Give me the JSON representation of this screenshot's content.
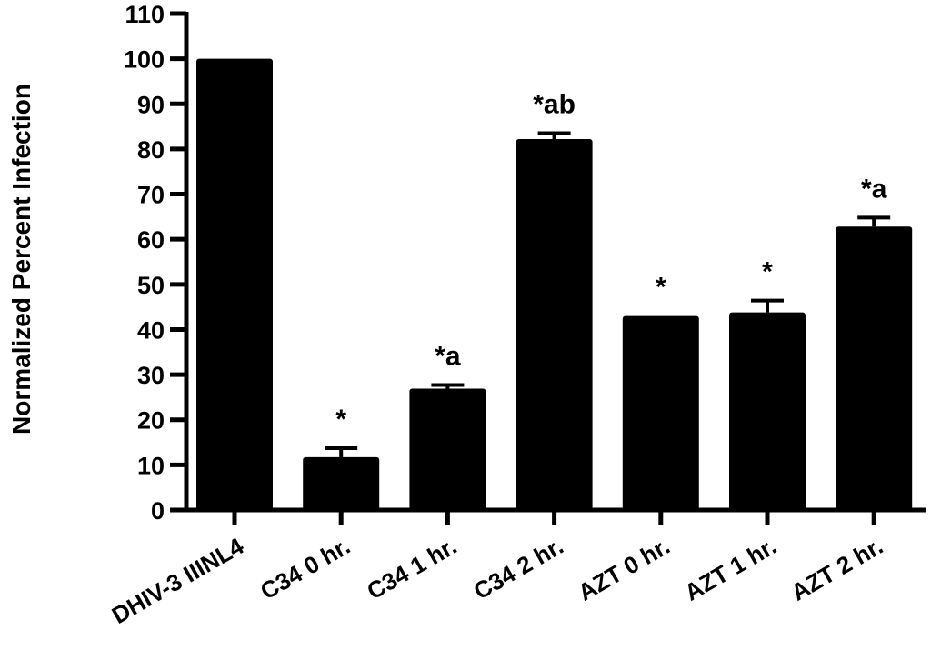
{
  "chart_data": {
    "type": "bar",
    "title": "",
    "xlabel": "",
    "ylabel": "Normalized Percent Infection",
    "ylim": [
      0,
      110
    ],
    "yticks": [
      0,
      10,
      20,
      30,
      40,
      50,
      60,
      70,
      80,
      90,
      100,
      110
    ],
    "ytick_labels": [
      "0",
      "10",
      "20",
      "30",
      "40",
      "50",
      "60",
      "70",
      "80",
      "90",
      "100",
      "110"
    ],
    "categories": [
      "DHIV-3 IIINL4",
      "C34 0 hr.",
      "C34 1 hr.",
      "C34 2 hr.",
      "AZT 0 hr.",
      "AZT 1 hr.",
      "AZT 2 hr."
    ],
    "values": [
      100,
      11.7,
      26.9,
      82.2,
      43.0,
      43.8,
      62.8
    ],
    "error": [
      0,
      2.0,
      0.8,
      1.3,
      0,
      2.6,
      2.0
    ],
    "annotations": [
      "",
      "*",
      "*a",
      "*ab",
      "*",
      "*",
      "*a"
    ],
    "bar_color": "#000000",
    "grid": false,
    "legend": "none"
  }
}
